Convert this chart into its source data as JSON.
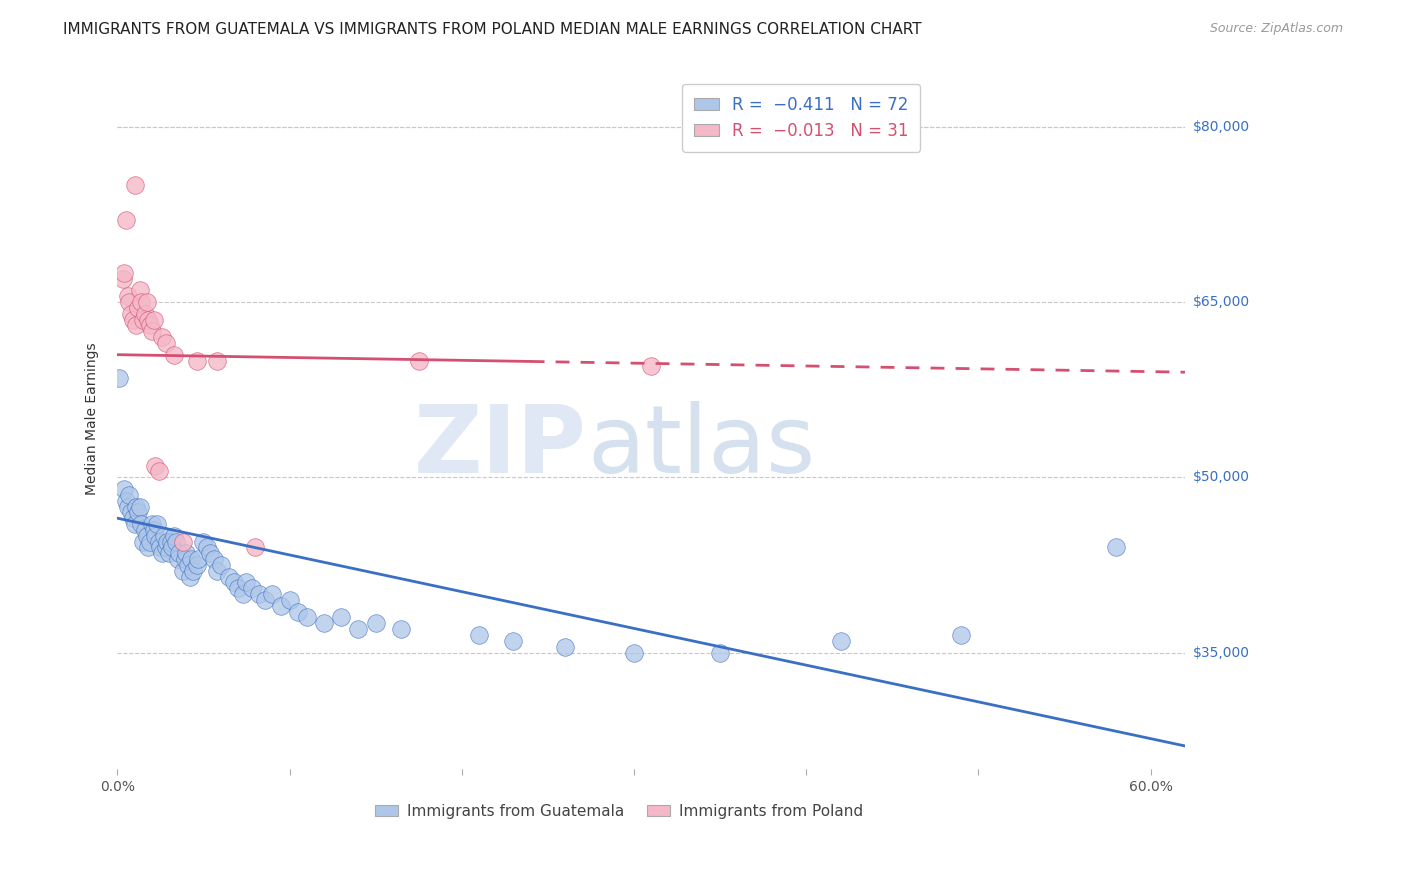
{
  "title": "IMMIGRANTS FROM GUATEMALA VS IMMIGRANTS FROM POLAND MEDIAN MALE EARNINGS CORRELATION CHART",
  "source": "Source: ZipAtlas.com",
  "ylabel": "Median Male Earnings",
  "xlim": [
    0.0,
    0.62
  ],
  "ylim": [
    25000,
    85000
  ],
  "yticks": [
    35000,
    50000,
    65000,
    80000
  ],
  "ytick_labels": [
    "$35,000",
    "$50,000",
    "$65,000",
    "$80,000"
  ],
  "xtick_positions": [
    0.0,
    0.1,
    0.2,
    0.3,
    0.4,
    0.5,
    0.6
  ],
  "xtick_labels": [
    "0.0%",
    "",
    "",
    "",
    "",
    "",
    "60.0%"
  ],
  "background_color": "#ffffff",
  "grid_color": "#c8c8c8",
  "color_blue": "#aec6e8",
  "color_pink": "#f4b8c8",
  "line_blue": "#3a6fc4",
  "line_pink": "#d45070",
  "watermark_zip": "ZIP",
  "watermark_atlas": "atlas",
  "scatter_guatemala": [
    [
      0.001,
      58500
    ],
    [
      0.004,
      49000
    ],
    [
      0.005,
      48000
    ],
    [
      0.006,
      47500
    ],
    [
      0.007,
      48500
    ],
    [
      0.008,
      47000
    ],
    [
      0.009,
      46500
    ],
    [
      0.01,
      46000
    ],
    [
      0.011,
      47500
    ],
    [
      0.012,
      47000
    ],
    [
      0.013,
      47500
    ],
    [
      0.014,
      46000
    ],
    [
      0.015,
      44500
    ],
    [
      0.016,
      45500
    ],
    [
      0.017,
      45000
    ],
    [
      0.018,
      44000
    ],
    [
      0.019,
      44500
    ],
    [
      0.02,
      46000
    ],
    [
      0.021,
      45500
    ],
    [
      0.022,
      45000
    ],
    [
      0.023,
      46000
    ],
    [
      0.024,
      44500
    ],
    [
      0.025,
      44000
    ],
    [
      0.026,
      43500
    ],
    [
      0.027,
      45000
    ],
    [
      0.028,
      44000
    ],
    [
      0.029,
      44500
    ],
    [
      0.03,
      43500
    ],
    [
      0.031,
      44500
    ],
    [
      0.032,
      44000
    ],
    [
      0.033,
      45000
    ],
    [
      0.034,
      44500
    ],
    [
      0.035,
      43000
    ],
    [
      0.036,
      43500
    ],
    [
      0.038,
      42000
    ],
    [
      0.039,
      43000
    ],
    [
      0.04,
      43500
    ],
    [
      0.041,
      42500
    ],
    [
      0.042,
      41500
    ],
    [
      0.043,
      43000
    ],
    [
      0.044,
      42000
    ],
    [
      0.046,
      42500
    ],
    [
      0.047,
      43000
    ],
    [
      0.05,
      44500
    ],
    [
      0.052,
      44000
    ],
    [
      0.054,
      43500
    ],
    [
      0.056,
      43000
    ],
    [
      0.058,
      42000
    ],
    [
      0.06,
      42500
    ],
    [
      0.065,
      41500
    ],
    [
      0.068,
      41000
    ],
    [
      0.07,
      40500
    ],
    [
      0.073,
      40000
    ],
    [
      0.075,
      41000
    ],
    [
      0.078,
      40500
    ],
    [
      0.082,
      40000
    ],
    [
      0.086,
      39500
    ],
    [
      0.09,
      40000
    ],
    [
      0.095,
      39000
    ],
    [
      0.1,
      39500
    ],
    [
      0.105,
      38500
    ],
    [
      0.11,
      38000
    ],
    [
      0.12,
      37500
    ],
    [
      0.13,
      38000
    ],
    [
      0.14,
      37000
    ],
    [
      0.15,
      37500
    ],
    [
      0.165,
      37000
    ],
    [
      0.21,
      36500
    ],
    [
      0.23,
      36000
    ],
    [
      0.26,
      35500
    ],
    [
      0.3,
      35000
    ],
    [
      0.35,
      35000
    ],
    [
      0.42,
      36000
    ],
    [
      0.49,
      36500
    ],
    [
      0.58,
      44000
    ]
  ],
  "scatter_poland": [
    [
      0.003,
      67000
    ],
    [
      0.004,
      67500
    ],
    [
      0.005,
      72000
    ],
    [
      0.006,
      65500
    ],
    [
      0.007,
      65000
    ],
    [
      0.008,
      64000
    ],
    [
      0.009,
      63500
    ],
    [
      0.01,
      75000
    ],
    [
      0.011,
      63000
    ],
    [
      0.012,
      64500
    ],
    [
      0.013,
      66000
    ],
    [
      0.014,
      65000
    ],
    [
      0.015,
      63500
    ],
    [
      0.016,
      64000
    ],
    [
      0.017,
      65000
    ],
    [
      0.018,
      63500
    ],
    [
      0.019,
      63000
    ],
    [
      0.02,
      62500
    ],
    [
      0.021,
      63500
    ],
    [
      0.022,
      51000
    ],
    [
      0.024,
      50500
    ],
    [
      0.026,
      62000
    ],
    [
      0.028,
      61500
    ],
    [
      0.033,
      60500
    ],
    [
      0.038,
      44500
    ],
    [
      0.046,
      60000
    ],
    [
      0.058,
      60000
    ],
    [
      0.08,
      44000
    ],
    [
      0.175,
      60000
    ],
    [
      0.31,
      59500
    ]
  ],
  "blue_line": {
    "x0": 0.0,
    "y0": 46500,
    "x1": 0.62,
    "y1": 27000
  },
  "pink_line": {
    "x0": 0.0,
    "y0": 60500,
    "x1": 0.62,
    "y1": 59000,
    "solid_end": 0.24
  },
  "title_fontsize": 11,
  "label_fontsize": 10,
  "tick_fontsize": 10,
  "source_fontsize": 9,
  "legend_fontsize": 12
}
